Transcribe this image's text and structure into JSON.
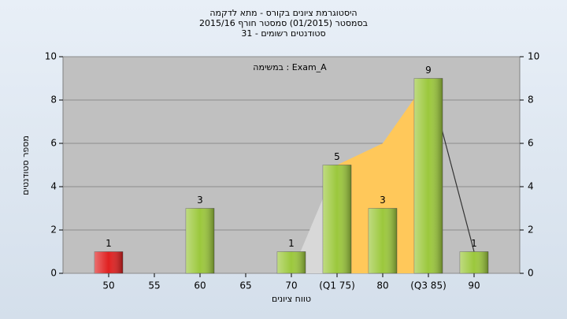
{
  "chart_data": {
    "type": "bar",
    "title": "היסטוגרמת ציונים בקורס - מתא לדקמה",
    "subtitle": [
      "בסמסטר  (01/2015)  סמסטר חורף 2015/16",
      "31 - סטודנטים רשומים"
    ],
    "annotation": "במשימה : Exam_A",
    "x_label": "טווח ציונים",
    "y_label": "מספר סטודנטים",
    "categories": [
      "50",
      "55",
      "60",
      "65",
      "70",
      "(Q1 75)",
      "80",
      "(Q3 85)",
      "90"
    ],
    "values": [
      1,
      null,
      3,
      null,
      1,
      5,
      3,
      9,
      1
    ],
    "colors": [
      "#e02020",
      null,
      "#9cc83c",
      null,
      "#9cc83c",
      "#9cc83c",
      "#9cc83c",
      "#9cc83c",
      "#9cc83c"
    ],
    "overlay": {
      "values": [
        null,
        null,
        null,
        null,
        0,
        5,
        6,
        9,
        1
      ],
      "colors": [
        "#d8d8d8",
        "#ffc85a",
        "#333333"
      ]
    },
    "ylim": [
      0,
      10
    ],
    "yticks": [
      0,
      2,
      4,
      6,
      8,
      10
    ],
    "y2lim": [
      0,
      10
    ],
    "y2ticks": [
      0,
      2,
      4,
      6,
      8,
      10
    ],
    "grid": true
  }
}
